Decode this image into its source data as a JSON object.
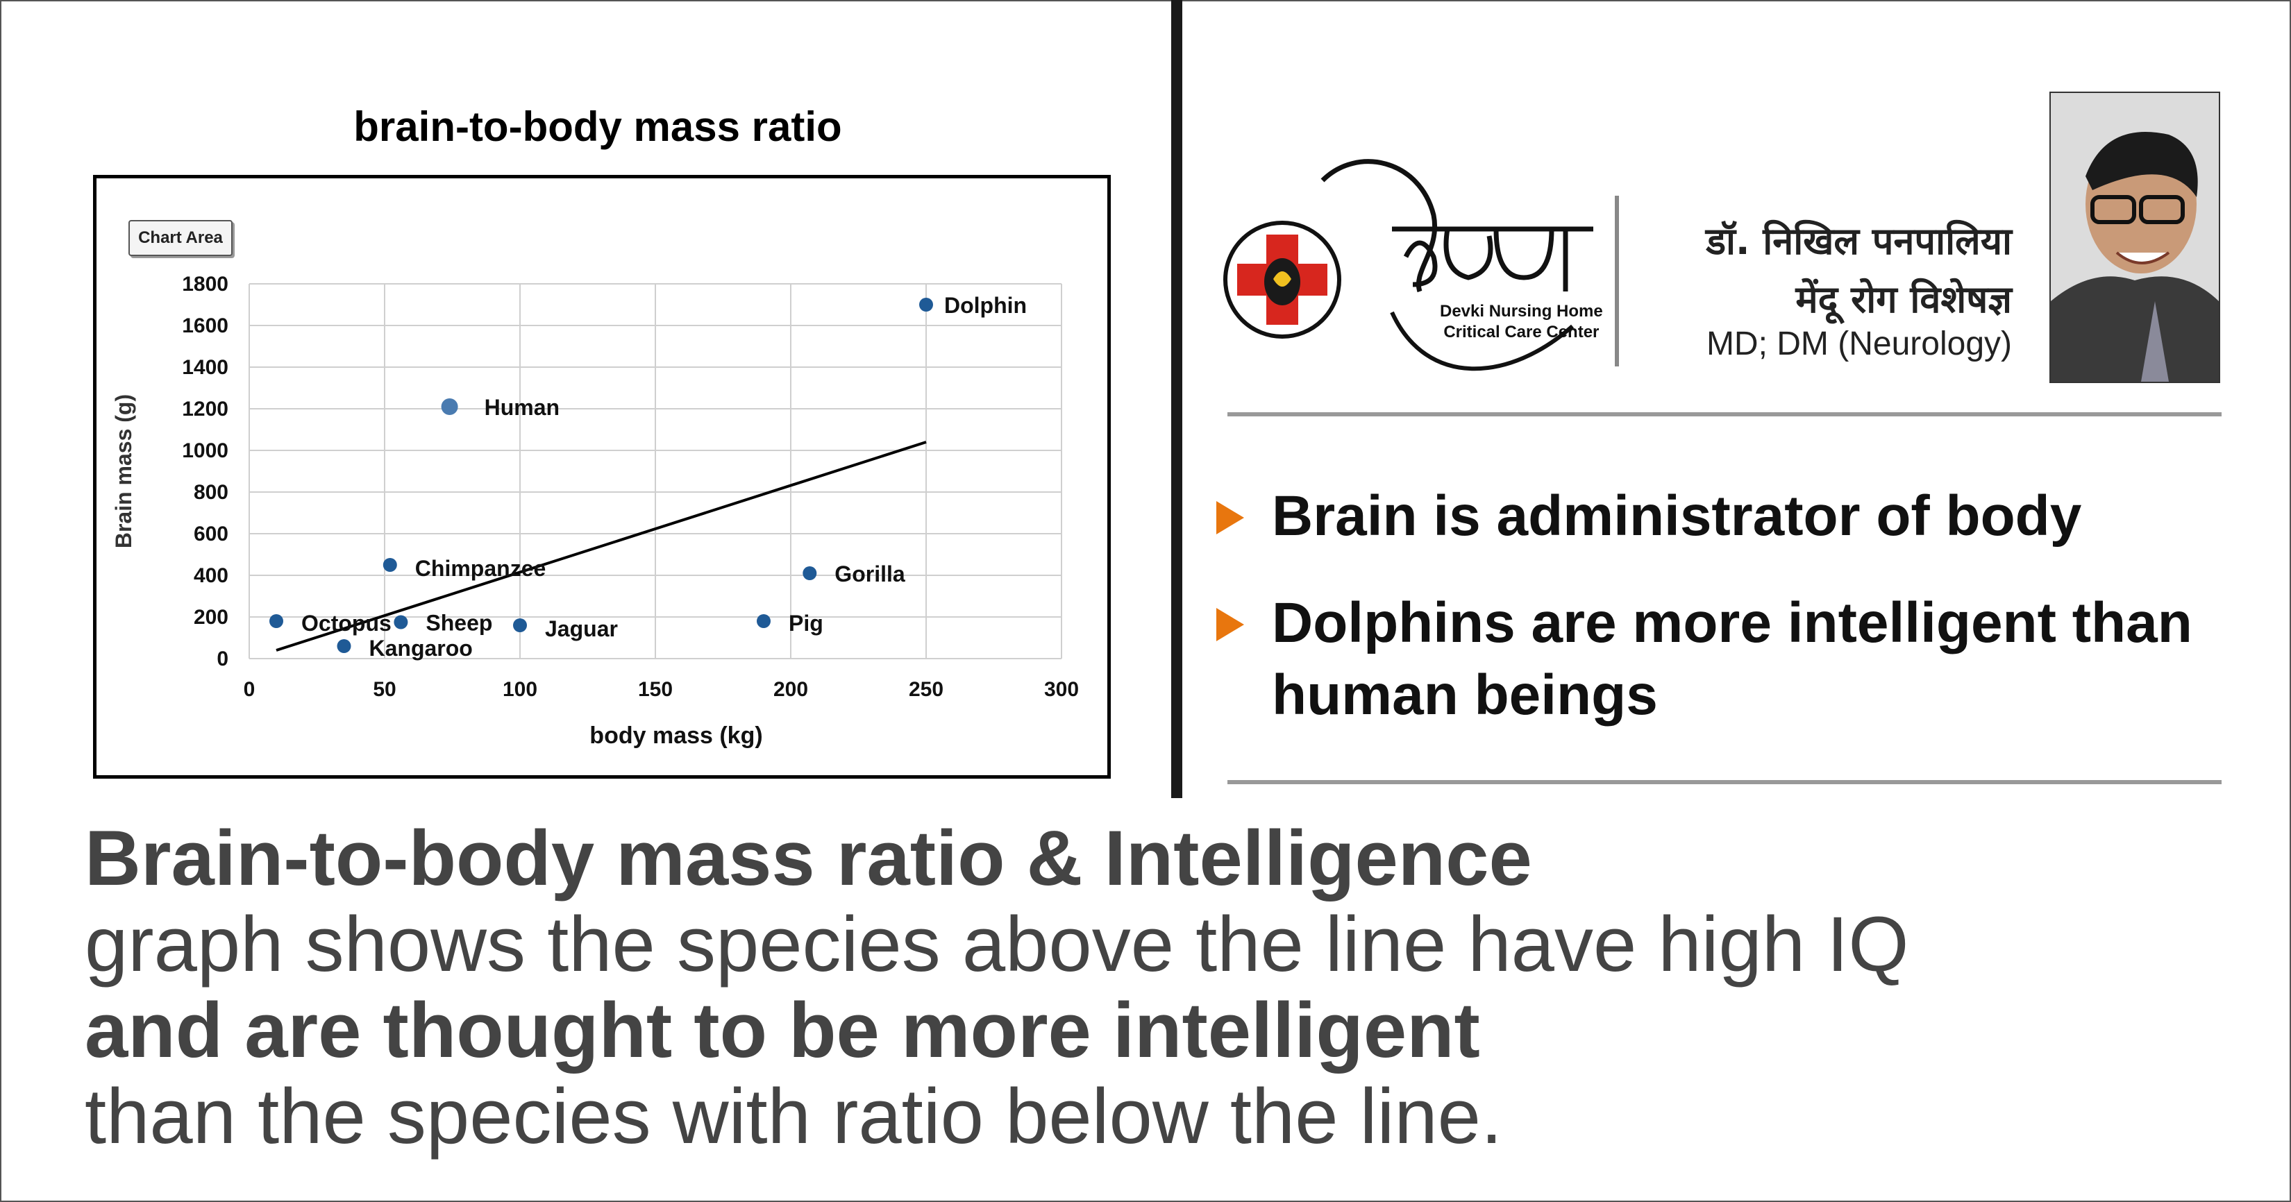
{
  "chart_data": {
    "type": "scatter",
    "title": "brain-to-body mass ratio",
    "xlabel": "body mass (kg)",
    "ylabel": "Brain mass (g)",
    "xlim": [
      0,
      300
    ],
    "ylim": [
      0,
      1800
    ],
    "xticks": [
      0,
      50,
      100,
      150,
      200,
      250,
      300
    ],
    "yticks": [
      0,
      200,
      400,
      600,
      800,
      1000,
      1200,
      1400,
      1600,
      1800
    ],
    "grid": true,
    "chart_area_label": "Chart Area",
    "points": [
      {
        "label": "Dolphin",
        "x": 250,
        "y": 1700,
        "color": "#1f5a96"
      },
      {
        "label": "Human",
        "x": 74,
        "y": 1210,
        "color": "#4a7bb0"
      },
      {
        "label": "Chimpanzee",
        "x": 52,
        "y": 450,
        "color": "#1f5a96"
      },
      {
        "label": "Gorilla",
        "x": 207,
        "y": 410,
        "color": "#1f5a96"
      },
      {
        "label": "Octopus",
        "x": 10,
        "y": 180,
        "color": "#1f5a96"
      },
      {
        "label": "Sheep",
        "x": 56,
        "y": 175,
        "color": "#1f5a96"
      },
      {
        "label": "Jaguar",
        "x": 100,
        "y": 160,
        "color": "#1f5a96"
      },
      {
        "label": "Pig",
        "x": 190,
        "y": 180,
        "color": "#1f5a96"
      },
      {
        "label": "Kangaroo",
        "x": 35,
        "y": 60,
        "color": "#1f5a96"
      }
    ],
    "trendline": {
      "x": [
        10,
        250
      ],
      "y": [
        40,
        1040
      ]
    }
  },
  "header": {
    "hospital_name_line1": "Devki Nursing Home",
    "hospital_name_line2": "Critical Care Center",
    "doctor_name": "डॉ. निखिल पनपालिया",
    "doctor_role": "मेंदू रोग विशेषज्ञ",
    "doctor_qualification": "MD; DM (Neurology)"
  },
  "bullets": [
    "Brain is administrator of body",
    "Dolphins are more intelligent than human beings"
  ],
  "bottom_text": {
    "line1": "Brain-to-body mass ratio & Intelligence",
    "line2": "graph shows the species above the line have high IQ",
    "line3": "and are thought to be more intelligent",
    "line4": "than the species with ratio below the line."
  },
  "colors": {
    "accent_orange": "#e8760e",
    "cross_red": "#d7261e",
    "point_blue": "#1f5a96"
  }
}
